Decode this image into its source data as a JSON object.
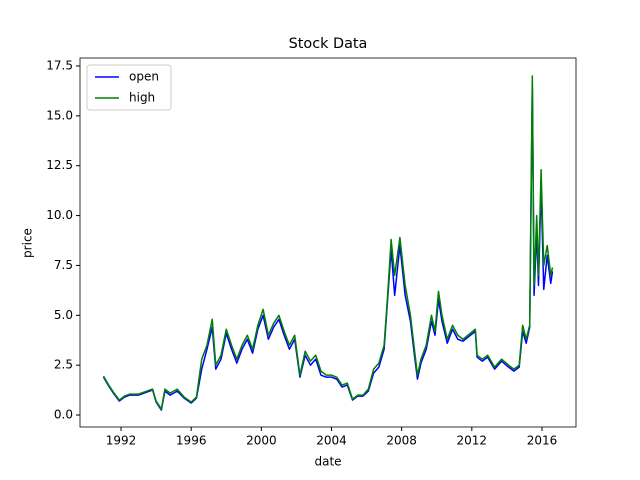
{
  "chart_data": {
    "type": "line",
    "title": "Stock Data",
    "x_label": "date",
    "y_label": "price",
    "x": [
      1991.0,
      1991.3,
      1991.6,
      1991.9,
      1992.2,
      1992.5,
      1993.0,
      1993.8,
      1994.0,
      1994.3,
      1994.5,
      1994.8,
      1995.2,
      1995.6,
      1996.0,
      1996.3,
      1996.6,
      1996.9,
      1997.2,
      1997.4,
      1997.7,
      1998.0,
      1998.3,
      1998.6,
      1998.9,
      1999.2,
      1999.5,
      1999.8,
      2000.1,
      2000.4,
      2000.7,
      2001.0,
      2001.3,
      2001.6,
      2001.9,
      2002.2,
      2002.5,
      2002.8,
      2003.1,
      2003.4,
      2003.7,
      2004.0,
      2004.3,
      2004.6,
      2004.9,
      2005.2,
      2005.5,
      2005.8,
      2006.1,
      2006.4,
      2006.7,
      2007.0,
      2007.2,
      2007.4,
      2007.6,
      2007.9,
      2008.2,
      2008.5,
      2008.7,
      2008.9,
      2009.1,
      2009.4,
      2009.7,
      2009.9,
      2010.1,
      2010.3,
      2010.6,
      2010.9,
      2011.2,
      2011.5,
      2012.2,
      2012.3,
      2012.6,
      2012.9,
      2013.3,
      2013.7,
      2014.1,
      2014.4,
      2014.7,
      2014.9,
      2015.1,
      2015.3,
      2015.45,
      2015.55,
      2015.7,
      2015.8,
      2015.95,
      2016.1,
      2016.3,
      2016.5,
      2016.6
    ],
    "series": [
      {
        "name": "open",
        "color": "#0000ff",
        "values": [
          1.9,
          1.45,
          1.05,
          0.7,
          0.9,
          1.0,
          1.0,
          1.25,
          0.65,
          0.25,
          1.2,
          1.0,
          1.2,
          0.85,
          0.6,
          0.85,
          2.3,
          3.3,
          4.4,
          2.3,
          2.8,
          4.1,
          3.3,
          2.6,
          3.3,
          3.8,
          3.1,
          4.3,
          5.0,
          3.8,
          4.4,
          4.8,
          4.0,
          3.3,
          3.8,
          1.9,
          3.0,
          2.5,
          2.8,
          2.0,
          1.9,
          1.9,
          1.8,
          1.4,
          1.5,
          0.75,
          0.95,
          0.95,
          1.2,
          2.1,
          2.4,
          3.3,
          5.8,
          8.3,
          6.0,
          8.5,
          6.0,
          4.7,
          3.2,
          1.8,
          2.6,
          3.3,
          4.7,
          4.0,
          5.8,
          4.7,
          3.6,
          4.3,
          3.8,
          3.7,
          4.2,
          2.9,
          2.7,
          2.9,
          2.3,
          2.7,
          2.4,
          2.2,
          2.4,
          4.2,
          3.6,
          4.4,
          16.5,
          6.0,
          9.2,
          6.5,
          11.5,
          6.3,
          8.0,
          6.6,
          7.2
        ]
      },
      {
        "name": "high",
        "color": "#008000",
        "values": [
          1.95,
          1.5,
          1.1,
          0.75,
          0.95,
          1.05,
          1.05,
          1.3,
          0.7,
          0.3,
          1.3,
          1.1,
          1.3,
          0.9,
          0.65,
          0.9,
          2.8,
          3.5,
          4.8,
          2.5,
          3.0,
          4.3,
          3.5,
          2.8,
          3.5,
          4.0,
          3.3,
          4.5,
          5.3,
          4.0,
          4.6,
          5.0,
          4.2,
          3.5,
          4.0,
          2.0,
          3.2,
          2.7,
          3.0,
          2.2,
          2.0,
          2.0,
          1.9,
          1.5,
          1.6,
          0.8,
          1.0,
          1.0,
          1.3,
          2.3,
          2.6,
          3.5,
          6.0,
          8.8,
          7.0,
          8.9,
          6.5,
          5.0,
          3.5,
          2.0,
          2.8,
          3.5,
          5.0,
          4.2,
          6.2,
          5.0,
          3.8,
          4.5,
          4.0,
          3.8,
          4.3,
          3.0,
          2.8,
          3.0,
          2.4,
          2.8,
          2.5,
          2.3,
          2.5,
          4.5,
          3.8,
          4.5,
          17.0,
          6.5,
          10.0,
          7.0,
          12.3,
          7.5,
          8.5,
          7.0,
          7.4
        ]
      }
    ],
    "xlim": [
      1989.66,
      2017.94
    ],
    "xticks": [
      1992,
      1996,
      2000,
      2004,
      2008,
      2012,
      2016
    ],
    "ylim": [
      -0.6,
      17.9
    ],
    "yticks": [
      {
        "value": 0,
        "label": "0.0"
      },
      2.5,
      {
        "value": 5,
        "label": "5.0"
      },
      7.5,
      {
        "value": 10,
        "label": "10.0"
      },
      12.5,
      {
        "value": 15,
        "label": "15.0"
      },
      17.5
    ],
    "legend": "upper left"
  }
}
